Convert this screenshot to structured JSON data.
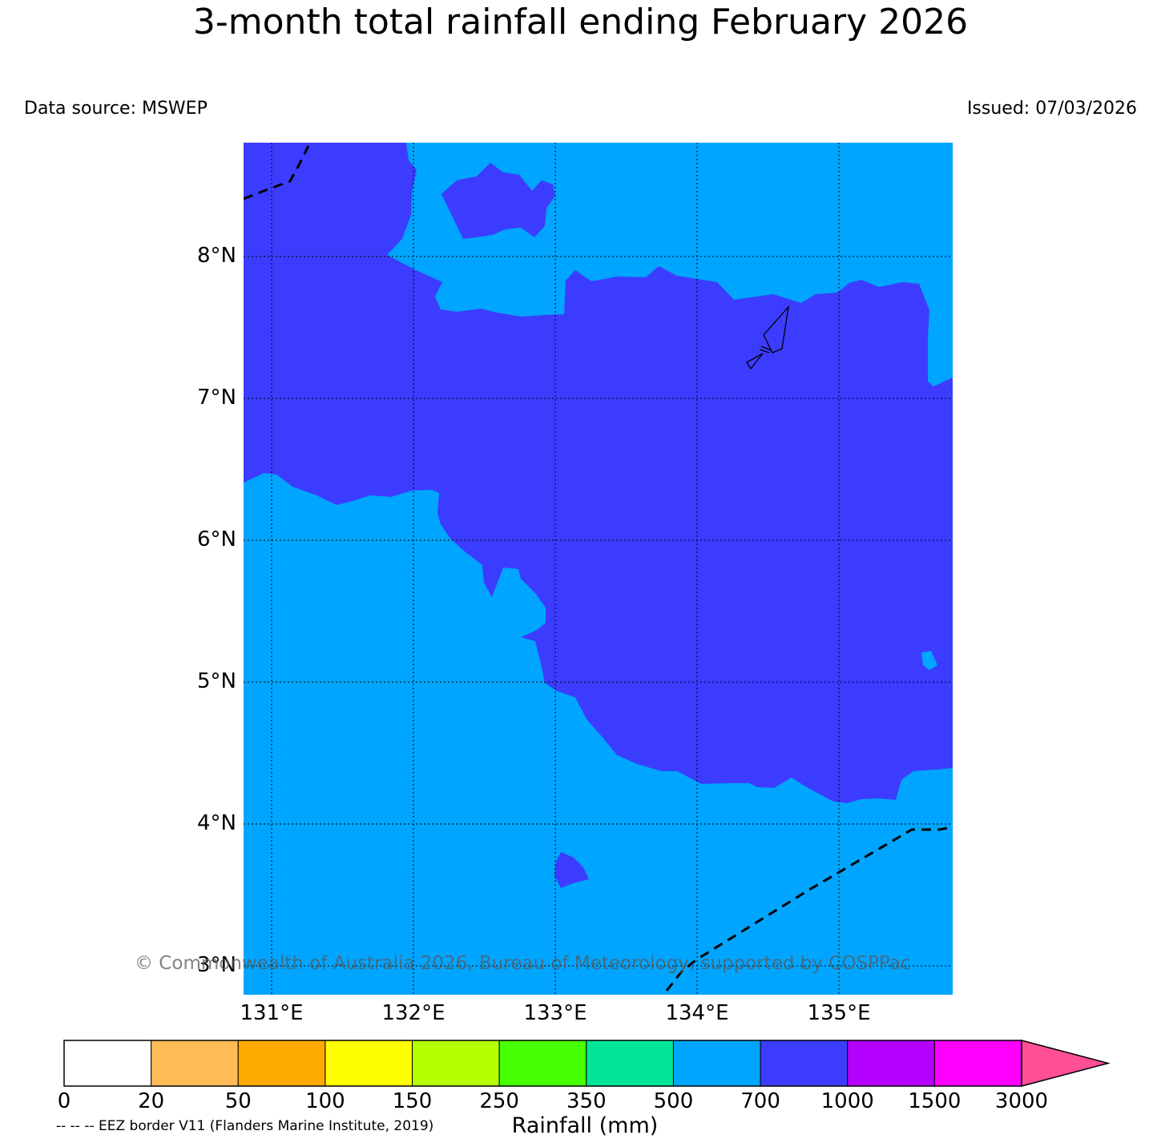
{
  "header": {
    "title": "3-month total rainfall ending February 2026",
    "data_source": "Data source: MSWEP",
    "issued": "Issued: 07/03/2026"
  },
  "map": {
    "lat_labels": [
      "8°N",
      "7°N",
      "6°N",
      "5°N",
      "4°N",
      "3°N"
    ],
    "lon_labels": [
      "131°E",
      "132°E",
      "133°E",
      "134°E",
      "135°E"
    ],
    "lat_range": [
      2.8,
      8.8
    ],
    "lon_range": [
      130.8,
      135.8
    ],
    "background_class": "500-700",
    "region_class": "700-1000",
    "gridlines": "dotted",
    "copyright": "© Commonwealth of Australia 2026, Bureau of Meteorology, supported by COSPPac"
  },
  "colorbar": {
    "title": "Rainfall (mm)",
    "tick_labels": [
      "0",
      "20",
      "50",
      "100",
      "150",
      "250",
      "350",
      "500",
      "700",
      "1000",
      "1500",
      "3000"
    ],
    "colors": [
      "#ffffff",
      "#ffbb55",
      "#ffaa00",
      "#ffff00",
      "#b4ff00",
      "#46ff00",
      "#00e696",
      "#00a5ff",
      "#3c3cff",
      "#b400ff",
      "#ff00ff",
      "#ff5096"
    ],
    "extend": "max"
  },
  "footer": {
    "eez_note": "-- -- -- EEZ border V11 (Flanders Marine Institute, 2019)"
  }
}
